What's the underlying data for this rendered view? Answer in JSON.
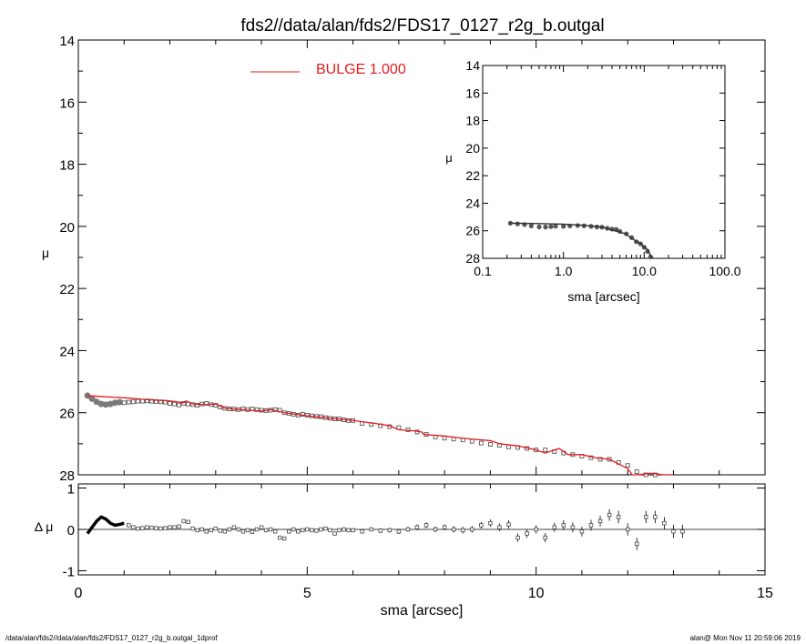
{
  "title": "fds2//data/alan/fds2/FDS17_0127_r2g_b.outgal",
  "footer": {
    "left": "/data/alan/fds2//data/alan/fds2/FDS17_0127_r2g_b.outgal_1dprof",
    "right": "alan@  Mon Nov 11 20:59:06 2019"
  },
  "colors": {
    "model": "#e8191c",
    "data": "#000000",
    "data_marker": "#7a7a7a",
    "frame": "#000000"
  },
  "chart_data": [
    {
      "id": "main",
      "type": "scatter",
      "title": "fds2//data/alan/fds2/FDS17_0127_r2g_b.outgal",
      "xlabel": "",
      "ylabel": "μ",
      "xlim": [
        0,
        15
      ],
      "ylim": [
        28,
        14
      ],
      "y_inverted": true,
      "yticks": [
        "14",
        "16",
        "18",
        "20",
        "22",
        "24",
        "26",
        "28"
      ],
      "legend": {
        "entries": [
          {
            "label": "BULGE  1.000",
            "color": "#e8191c"
          }
        ],
        "placement": "top-left"
      },
      "series": [
        {
          "name": "data",
          "style": "squares",
          "x": [
            0.2,
            0.3,
            0.4,
            0.5,
            0.6,
            0.7,
            0.8,
            0.9,
            1.0,
            1.1,
            1.2,
            1.3,
            1.4,
            1.5,
            1.6,
            1.7,
            1.8,
            1.9,
            2.0,
            2.1,
            2.2,
            2.3,
            2.4,
            2.5,
            2.6,
            2.7,
            2.8,
            2.9,
            3.0,
            3.1,
            3.2,
            3.3,
            3.4,
            3.5,
            3.6,
            3.7,
            3.8,
            3.9,
            4.0,
            4.1,
            4.2,
            4.3,
            4.4,
            4.5,
            4.6,
            4.7,
            4.8,
            4.9,
            5.0,
            5.1,
            5.2,
            5.3,
            5.4,
            5.5,
            5.6,
            5.7,
            5.8,
            5.9,
            6.0,
            6.2,
            6.4,
            6.6,
            6.8,
            7.0,
            7.2,
            7.4,
            7.6,
            7.8,
            8.0,
            8.2,
            8.4,
            8.6,
            8.8,
            9.0,
            9.2,
            9.4,
            9.6,
            9.8,
            10.0,
            10.2,
            10.4,
            10.6,
            10.8,
            11.0,
            11.2,
            11.4,
            11.6,
            11.8,
            12.0,
            12.2,
            12.4,
            12.6,
            12.8,
            13.0,
            13.2
          ],
          "y": [
            25.45,
            25.55,
            25.65,
            25.72,
            25.74,
            25.72,
            25.68,
            25.66,
            25.68,
            25.66,
            25.65,
            25.63,
            25.63,
            25.62,
            25.63,
            25.64,
            25.65,
            25.66,
            25.7,
            25.72,
            25.75,
            25.7,
            25.72,
            25.74,
            25.76,
            25.72,
            25.7,
            25.74,
            25.76,
            25.82,
            25.86,
            25.88,
            25.88,
            25.9,
            25.87,
            25.9,
            25.88,
            25.9,
            25.92,
            25.93,
            25.92,
            25.9,
            25.92,
            26.0,
            26.02,
            26.05,
            26.08,
            26.05,
            26.08,
            26.1,
            26.12,
            26.13,
            26.16,
            26.18,
            26.2,
            26.2,
            26.23,
            26.25,
            26.25,
            26.35,
            26.38,
            26.42,
            26.45,
            26.48,
            26.55,
            26.62,
            26.7,
            26.78,
            26.82,
            26.85,
            26.88,
            26.92,
            26.98,
            27.02,
            27.05,
            27.1,
            27.12,
            27.15,
            27.2,
            27.2,
            27.25,
            27.3,
            27.35,
            27.4,
            27.45,
            27.5,
            27.5,
            27.6,
            27.7,
            27.9,
            28.0,
            28.0,
            28.1,
            28.1,
            28.2
          ]
        },
        {
          "name": "BULGE  1.000",
          "style": "line",
          "x": [
            0.2,
            0.5,
            1.0,
            1.5,
            2.0,
            2.3,
            2.35,
            2.5,
            2.8,
            3.0,
            3.2,
            3.5,
            4.0,
            4.2,
            4.5,
            5.0,
            5.5,
            6.0,
            6.5,
            6.8,
            7.0,
            7.3,
            7.5,
            7.55,
            8.0,
            8.4,
            8.6,
            9.0,
            9.2,
            9.5,
            9.7,
            10.0,
            10.2,
            10.5,
            10.7,
            11.0,
            11.3,
            11.6,
            11.8,
            12.0,
            12.1,
            12.2,
            12.5,
            12.8,
            13.0
          ],
          "y": [
            25.45,
            25.48,
            25.52,
            25.58,
            25.62,
            25.68,
            25.62,
            25.72,
            25.74,
            25.72,
            25.85,
            25.9,
            25.95,
            25.9,
            26.0,
            26.1,
            26.18,
            26.25,
            26.35,
            26.42,
            26.55,
            26.58,
            26.62,
            26.7,
            26.75,
            26.82,
            26.85,
            26.9,
            27.0,
            27.05,
            27.1,
            27.2,
            27.3,
            27.15,
            27.35,
            27.35,
            27.45,
            27.5,
            27.65,
            27.8,
            28.0,
            28.2,
            27.95,
            28.0,
            28.05
          ]
        }
      ]
    },
    {
      "id": "inset",
      "type": "scatter",
      "xlabel": "sma [arcsec]",
      "ylabel": "μ",
      "x_scale": "log",
      "xlim": [
        0.1,
        100.0
      ],
      "ylim": [
        28,
        14
      ],
      "y_inverted": true,
      "xticks": [
        "0.1",
        "1.0",
        "10.0",
        "100.0"
      ],
      "yticks": [
        "14",
        "16",
        "18",
        "20",
        "22",
        "24",
        "26",
        "28"
      ],
      "series": [
        {
          "name": "data",
          "style": "points",
          "x": [
            0.22,
            0.27,
            0.33,
            0.4,
            0.5,
            0.6,
            0.7,
            0.8,
            1.0,
            1.2,
            1.5,
            1.8,
            2.2,
            2.6,
            3.0,
            3.5,
            4.0,
            4.5,
            5.0,
            6.0,
            7.0,
            8.0,
            9.0,
            10.0,
            11.0,
            12.0,
            13.0
          ],
          "y": [
            25.45,
            25.5,
            25.55,
            25.65,
            25.72,
            25.73,
            25.7,
            25.67,
            25.68,
            25.65,
            25.62,
            25.64,
            25.68,
            25.72,
            25.74,
            25.82,
            25.88,
            25.9,
            26.05,
            26.22,
            26.5,
            26.8,
            26.95,
            27.2,
            27.5,
            27.9,
            28.2
          ]
        },
        {
          "name": "BULGE  1.000",
          "style": "line",
          "x": [
            0.22,
            0.5,
            1.0,
            2.0,
            3.0,
            4.0,
            5.0,
            6.0,
            7.0,
            8.0,
            9.0,
            10.0,
            11.0,
            12.0,
            13.0
          ],
          "y": [
            25.45,
            25.48,
            25.52,
            25.62,
            25.72,
            25.95,
            26.1,
            26.25,
            26.55,
            26.75,
            26.9,
            27.2,
            27.35,
            27.8,
            28.05
          ]
        }
      ]
    },
    {
      "id": "residual",
      "type": "scatter",
      "xlabel": "sma [arcsec]",
      "ylabel": "Δ μ",
      "xlim": [
        0,
        15
      ],
      "ylim": [
        -1.1,
        1.1
      ],
      "xticks": [
        "0",
        "5",
        "10",
        "15"
      ],
      "yticks": [
        "-1",
        "0",
        "1"
      ],
      "series": [
        {
          "name": "residual",
          "style": "squares",
          "x": [
            0.2,
            0.3,
            0.4,
            0.5,
            0.6,
            0.7,
            0.8,
            0.9,
            1.0,
            1.1,
            1.2,
            1.3,
            1.4,
            1.5,
            1.6,
            1.7,
            1.8,
            1.9,
            2.0,
            2.1,
            2.2,
            2.3,
            2.4,
            2.5,
            2.6,
            2.7,
            2.8,
            2.9,
            3.0,
            3.1,
            3.2,
            3.3,
            3.4,
            3.5,
            3.6,
            3.7,
            3.8,
            3.9,
            4.0,
            4.1,
            4.2,
            4.3,
            4.4,
            4.5,
            4.6,
            4.7,
            4.8,
            4.9,
            5.0,
            5.1,
            5.2,
            5.3,
            5.4,
            5.5,
            5.6,
            5.7,
            5.8,
            5.9,
            6.0,
            6.2,
            6.4,
            6.6,
            6.8,
            7.0,
            7.2,
            7.4,
            7.6,
            7.8,
            8.0,
            8.2,
            8.4,
            8.6,
            8.8,
            9.0,
            9.2,
            9.4,
            9.6,
            9.8,
            10.0,
            10.2,
            10.4,
            10.6,
            10.8,
            11.0,
            11.2,
            11.4,
            11.6,
            11.8,
            12.0,
            12.2,
            12.4,
            12.6,
            12.8,
            13.0,
            13.2
          ],
          "y": [
            -0.1,
            0.05,
            0.2,
            0.3,
            0.25,
            0.15,
            0.1,
            0.12,
            0.15,
            0.1,
            0.05,
            0.02,
            0.03,
            0.05,
            0.04,
            0.03,
            0.02,
            0.03,
            0.05,
            0.05,
            0.07,
            0.2,
            0.18,
            0.02,
            -0.02,
            0.0,
            -0.05,
            -0.02,
            0.02,
            -0.03,
            -0.05,
            0.0,
            0.05,
            0.0,
            -0.05,
            -0.02,
            -0.06,
            0.0,
            0.05,
            -0.02,
            0.0,
            -0.05,
            -0.2,
            -0.22,
            -0.05,
            0.0,
            -0.05,
            -0.02,
            0.0,
            -0.02,
            -0.03,
            0.0,
            0.02,
            -0.02,
            -0.1,
            -0.02,
            0.0,
            -0.02,
            -0.02,
            -0.05,
            0.0,
            -0.03,
            -0.02,
            -0.05,
            0.0,
            0.05,
            0.1,
            0.0,
            0.05,
            0.0,
            -0.02,
            0.0,
            0.1,
            0.15,
            0.05,
            0.12,
            -0.2,
            -0.1,
            0.0,
            -0.2,
            0.05,
            0.1,
            0.05,
            -0.05,
            0.1,
            0.2,
            0.35,
            0.3,
            0.0,
            -0.35,
            0.3,
            0.3,
            0.15,
            -0.05,
            -0.05
          ],
          "yerr": [
            0.01,
            0.01,
            0.01,
            0.01,
            0.01,
            0.01,
            0.01,
            0.01,
            0.01,
            0.01,
            0.01,
            0.01,
            0.01,
            0.01,
            0.01,
            0.01,
            0.01,
            0.01,
            0.02,
            0.02,
            0.02,
            0.02,
            0.02,
            0.02,
            0.02,
            0.02,
            0.02,
            0.02,
            0.02,
            0.02,
            0.02,
            0.02,
            0.02,
            0.02,
            0.03,
            0.03,
            0.03,
            0.03,
            0.03,
            0.03,
            0.03,
            0.03,
            0.03,
            0.03,
            0.03,
            0.03,
            0.03,
            0.04,
            0.04,
            0.04,
            0.04,
            0.04,
            0.04,
            0.04,
            0.04,
            0.04,
            0.05,
            0.05,
            0.05,
            0.05,
            0.05,
            0.06,
            0.06,
            0.06,
            0.06,
            0.07,
            0.07,
            0.07,
            0.07,
            0.08,
            0.08,
            0.08,
            0.08,
            0.09,
            0.09,
            0.1,
            0.1,
            0.1,
            0.1,
            0.11,
            0.11,
            0.12,
            0.12,
            0.12,
            0.13,
            0.13,
            0.14,
            0.15,
            0.15,
            0.15,
            0.15,
            0.15,
            0.15,
            0.16,
            0.16
          ]
        },
        {
          "name": "zero-line",
          "style": "line",
          "x": [
            0,
            15
          ],
          "y": [
            0,
            0
          ]
        }
      ]
    }
  ]
}
